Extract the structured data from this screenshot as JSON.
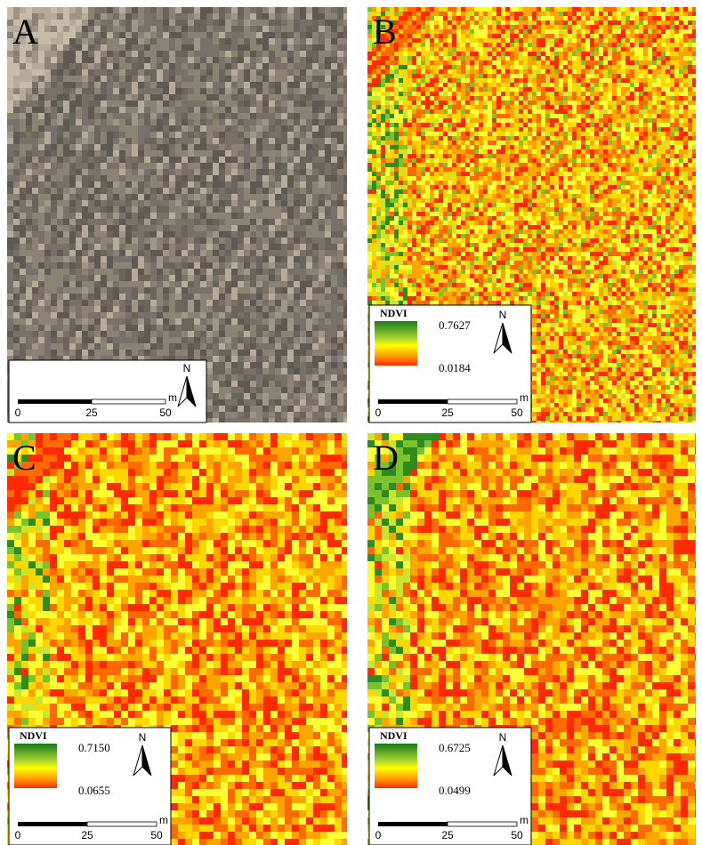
{
  "panels": [
    {
      "label": "A",
      "scale": {
        "ticks": [
          "0",
          "25",
          "50"
        ],
        "unit": "m"
      },
      "north": "N"
    },
    {
      "label": "B",
      "legend": {
        "title": "NDVI",
        "max": "0.7627",
        "min": "0.0184"
      },
      "scale": {
        "ticks": [
          "0",
          "25",
          "50"
        ],
        "unit": "m"
      },
      "north": "N"
    },
    {
      "label": "C",
      "legend": {
        "title": "NDVI",
        "max": "0.7150",
        "min": "0.0655"
      },
      "scale": {
        "ticks": [
          "0",
          "25",
          "50"
        ],
        "unit": "m"
      },
      "north": "N"
    },
    {
      "label": "D",
      "legend": {
        "title": "NDVI",
        "max": "0.6725",
        "min": "0.0499"
      },
      "scale": {
        "ticks": [
          "0",
          "25",
          "50"
        ],
        "unit": "m"
      },
      "north": "N"
    }
  ]
}
